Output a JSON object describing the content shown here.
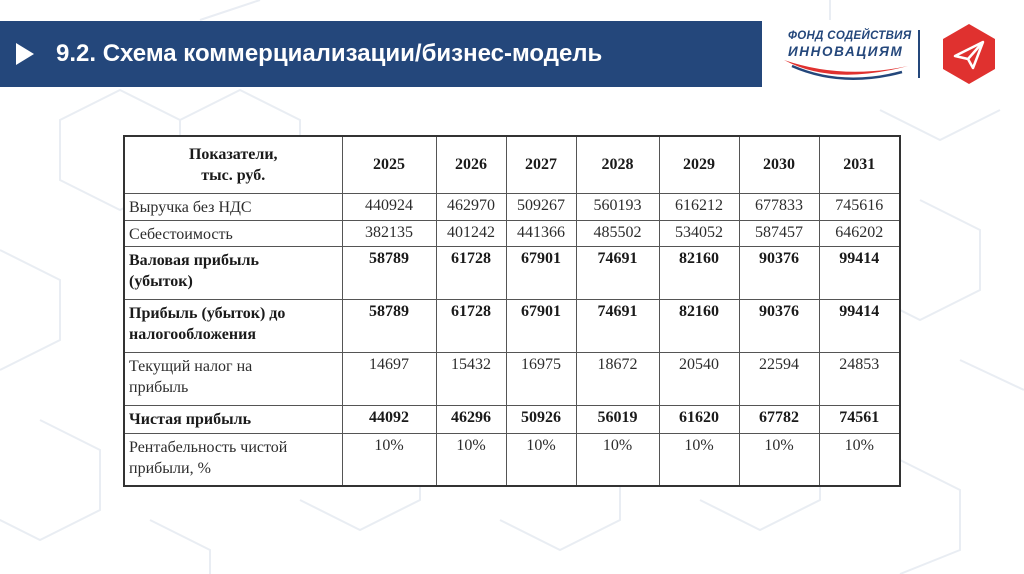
{
  "slide": {
    "title": "9.2. Схема коммерциализации/бизнес-модель"
  },
  "logo": {
    "line1": "ФОНД СОДЕЙСТВИЯ",
    "line2": "ИННОВАЦИЯМ",
    "brand_color": "#24477b",
    "accent_color": "#e0312f"
  },
  "table": {
    "header_label_line1": "Показатели,",
    "header_label_line2": "тыс. руб.",
    "years": [
      "2025",
      "2026",
      "2027",
      "2028",
      "2029",
      "2030",
      "2031"
    ],
    "rows": [
      {
        "label_line1": "Выручка без НДС",
        "label_line2": "",
        "bold": false,
        "values": [
          "440924",
          "462970",
          "509267",
          "560193",
          "616212",
          "677833",
          "745616"
        ]
      },
      {
        "label_line1": "Себестоимость",
        "label_line2": "",
        "bold": false,
        "values": [
          "382135",
          "401242",
          "441366",
          "485502",
          "534052",
          "587457",
          "646202"
        ]
      },
      {
        "label_line1": "Валовая прибыль",
        "label_line2": "(убыток)",
        "bold": true,
        "values": [
          "58789",
          "61728",
          "67901",
          "74691",
          "82160",
          "90376",
          "99414"
        ]
      },
      {
        "label_line1": "Прибыль (убыток) до",
        "label_line2": "налогообложения",
        "bold": true,
        "values": [
          "58789",
          "61728",
          "67901",
          "74691",
          "82160",
          "90376",
          "99414"
        ]
      },
      {
        "label_line1": "Текущий налог на",
        "label_line2": "прибыль",
        "bold": false,
        "values": [
          "14697",
          "15432",
          "16975",
          "18672",
          "20540",
          "22594",
          "24853"
        ]
      },
      {
        "label_line1": "Чистая прибыль",
        "label_line2": "",
        "bold": true,
        "values": [
          "44092",
          "46296",
          "50926",
          "56019",
          "61620",
          "67782",
          "74561"
        ]
      },
      {
        "label_line1": "Рентабельность чистой",
        "label_line2": "прибыли, %",
        "bold": false,
        "values": [
          "10%",
          "10%",
          "10%",
          "10%",
          "10%",
          "10%",
          "10%"
        ]
      }
    ]
  }
}
